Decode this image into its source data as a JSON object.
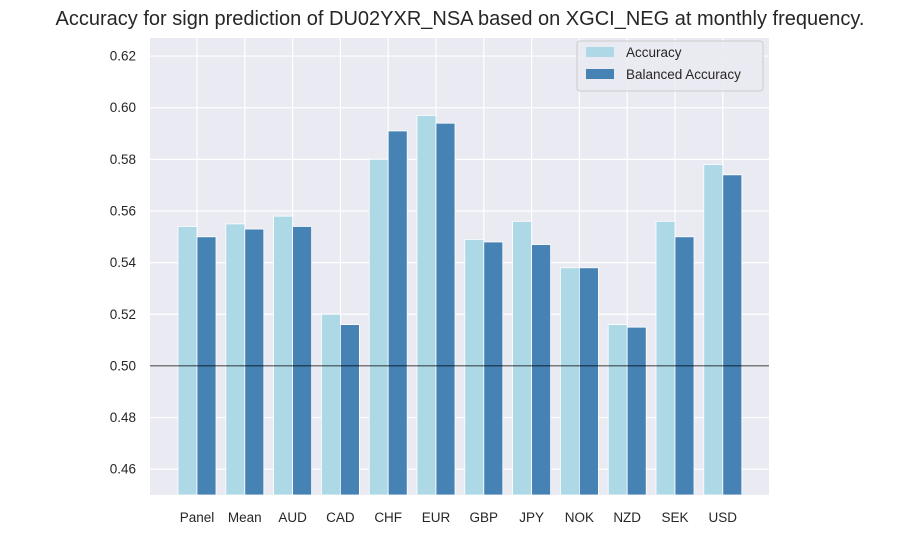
{
  "chart_data": {
    "type": "bar",
    "title": "Accuracy for sign prediction of DU02YXR_NSA based on XGCI_NEG at monthly frequency.",
    "xlabel": "",
    "ylabel": "",
    "categories": [
      "Panel",
      "Mean",
      "AUD",
      "CAD",
      "CHF",
      "EUR",
      "GBP",
      "JPY",
      "NOK",
      "NZD",
      "SEK",
      "USD"
    ],
    "series": [
      {
        "name": "Accuracy",
        "color": "#add8e6",
        "values": [
          0.554,
          0.555,
          0.558,
          0.52,
          0.58,
          0.597,
          0.549,
          0.556,
          0.538,
          0.516,
          0.556,
          0.578
        ]
      },
      {
        "name": "Balanced Accuracy",
        "color": "#4682b4",
        "values": [
          0.55,
          0.553,
          0.554,
          0.516,
          0.591,
          0.594,
          0.548,
          0.547,
          0.538,
          0.515,
          0.55,
          0.574
        ]
      }
    ],
    "ylim": [
      0.45,
      0.627
    ],
    "yticks": [
      0.46,
      0.48,
      0.5,
      0.52,
      0.54,
      0.56,
      0.58,
      0.6,
      0.62
    ],
    "ytick_labels": [
      "0.46",
      "0.48",
      "0.50",
      "0.52",
      "0.54",
      "0.56",
      "0.58",
      "0.60",
      "0.62"
    ],
    "reference_line": 0.5,
    "grid": true,
    "legend_position": "top-right",
    "colors": {
      "background": "#eaeaf2",
      "grid": "#ffffff",
      "text": "#262626",
      "reference_line": "#000000"
    }
  }
}
